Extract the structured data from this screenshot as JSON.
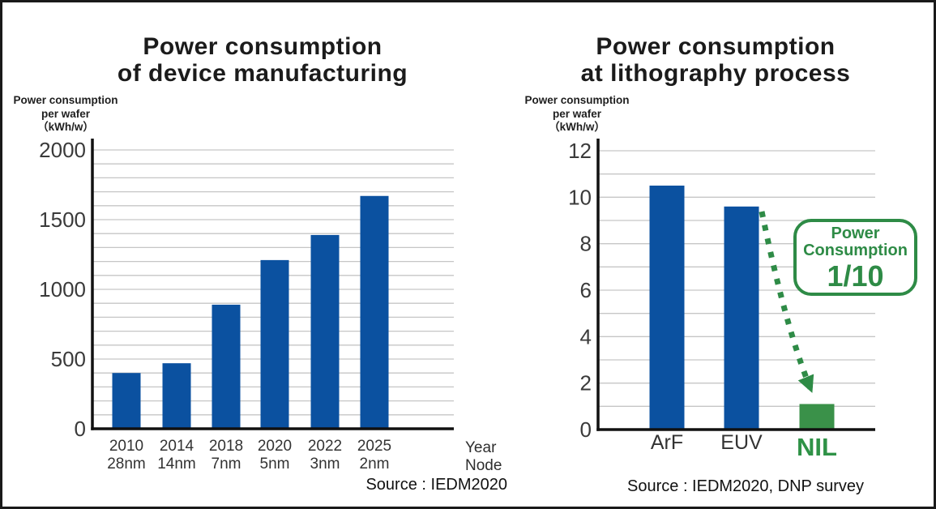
{
  "page": {
    "background": "#ffffff",
    "border_color": "#1a1a1a"
  },
  "chart_data": [
    {
      "type": "bar",
      "title": "Power consumption of device manufacturing",
      "title_lines": [
        "Power consumption",
        "of device manufacturing"
      ],
      "ylabel": "Power consumption per wafer (kWh/w)",
      "ylabel_lines": [
        "Power consumption",
        "per wafer",
        "（kWh/w）"
      ],
      "categories": [
        "2010",
        "2014",
        "2018",
        "2020",
        "2022",
        "2025"
      ],
      "category_sublabels": [
        "28nm",
        "14nm",
        "7nm",
        "5nm",
        "3nm",
        "2nm"
      ],
      "values": [
        400,
        470,
        890,
        1210,
        1390,
        1670
      ],
      "ylim": [
        0,
        2000
      ],
      "ytick_step": 500,
      "grid_step": 100,
      "grid": true,
      "bar_color": "#0b51a0",
      "xlabel_note_lines": [
        "Year",
        "Node"
      ],
      "source": "Source : IEDM2020"
    },
    {
      "type": "bar",
      "title": "Power consumption at lithography process",
      "title_lines": [
        "Power consumption",
        "at lithography process"
      ],
      "ylabel": "Power consumption per wafer (kWh/w)",
      "ylabel_lines": [
        "Power consumption",
        "per wafer",
        "（kWh/w）"
      ],
      "categories": [
        "ArF",
        "EUV",
        "NIL"
      ],
      "values": [
        10.5,
        9.6,
        1.1
      ],
      "ylim": [
        0,
        12
      ],
      "ytick_step": 2,
      "grid_step": 1,
      "grid": true,
      "bar_colors": [
        "#0b51a0",
        "#0b51a0",
        "#3a9149"
      ],
      "category_colors": [
        "#333333",
        "#333333",
        "#2f9247"
      ],
      "category_emphasis": [
        false,
        false,
        true
      ],
      "arrow_color": "#2e8b46",
      "annotation": {
        "lines": [
          "Power",
          "Consumption"
        ],
        "value_text": "1/10",
        "color": "#2e8b46"
      },
      "source": "Source : IEDM2020, DNP survey"
    }
  ]
}
